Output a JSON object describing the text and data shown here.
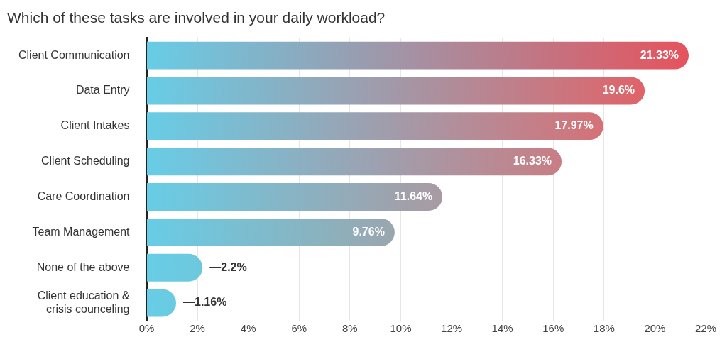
{
  "chart_data": {
    "type": "bar",
    "orientation": "horizontal",
    "title": "Which of these tasks are involved in your daily workload?",
    "categories": [
      "Client Communication",
      "Data Entry",
      "Client Intakes",
      "Client Scheduling",
      "Care Coordination",
      "Team Management",
      "None of the above",
      "Client education & crisis counceling"
    ],
    "values": [
      21.33,
      19.6,
      17.97,
      16.33,
      11.64,
      9.76,
      2.2,
      1.16
    ],
    "colors": [
      "#e5535d",
      "#df6369",
      "#d57177",
      "#c97d84",
      "#a99aa2",
      "#9aa6ae",
      "#6ec8dc",
      "#6acbe0"
    ],
    "value_labels": [
      "21.33%",
      "19.6%",
      "17.97%",
      "16.33%",
      "11.64%",
      "9.76%",
      "—2.2%",
      "—1.16%"
    ],
    "xlim": [
      0,
      22
    ],
    "xticks": [
      {
        "value": 0,
        "label": "0%"
      },
      {
        "value": 2,
        "label": "2%"
      },
      {
        "value": 4,
        "label": "4%"
      },
      {
        "value": 6,
        "label": "6%"
      },
      {
        "value": 8,
        "label": "8%"
      },
      {
        "value": 10,
        "label": "10%"
      },
      {
        "value": 12,
        "label": "12%"
      },
      {
        "value": 14,
        "label": "14%"
      },
      {
        "value": 16,
        "label": "16%"
      },
      {
        "value": 18,
        "label": "18%"
      },
      {
        "value": 20,
        "label": "20%"
      },
      {
        "value": 22,
        "label": "22%"
      }
    ],
    "grid": "x",
    "legend": false
  }
}
